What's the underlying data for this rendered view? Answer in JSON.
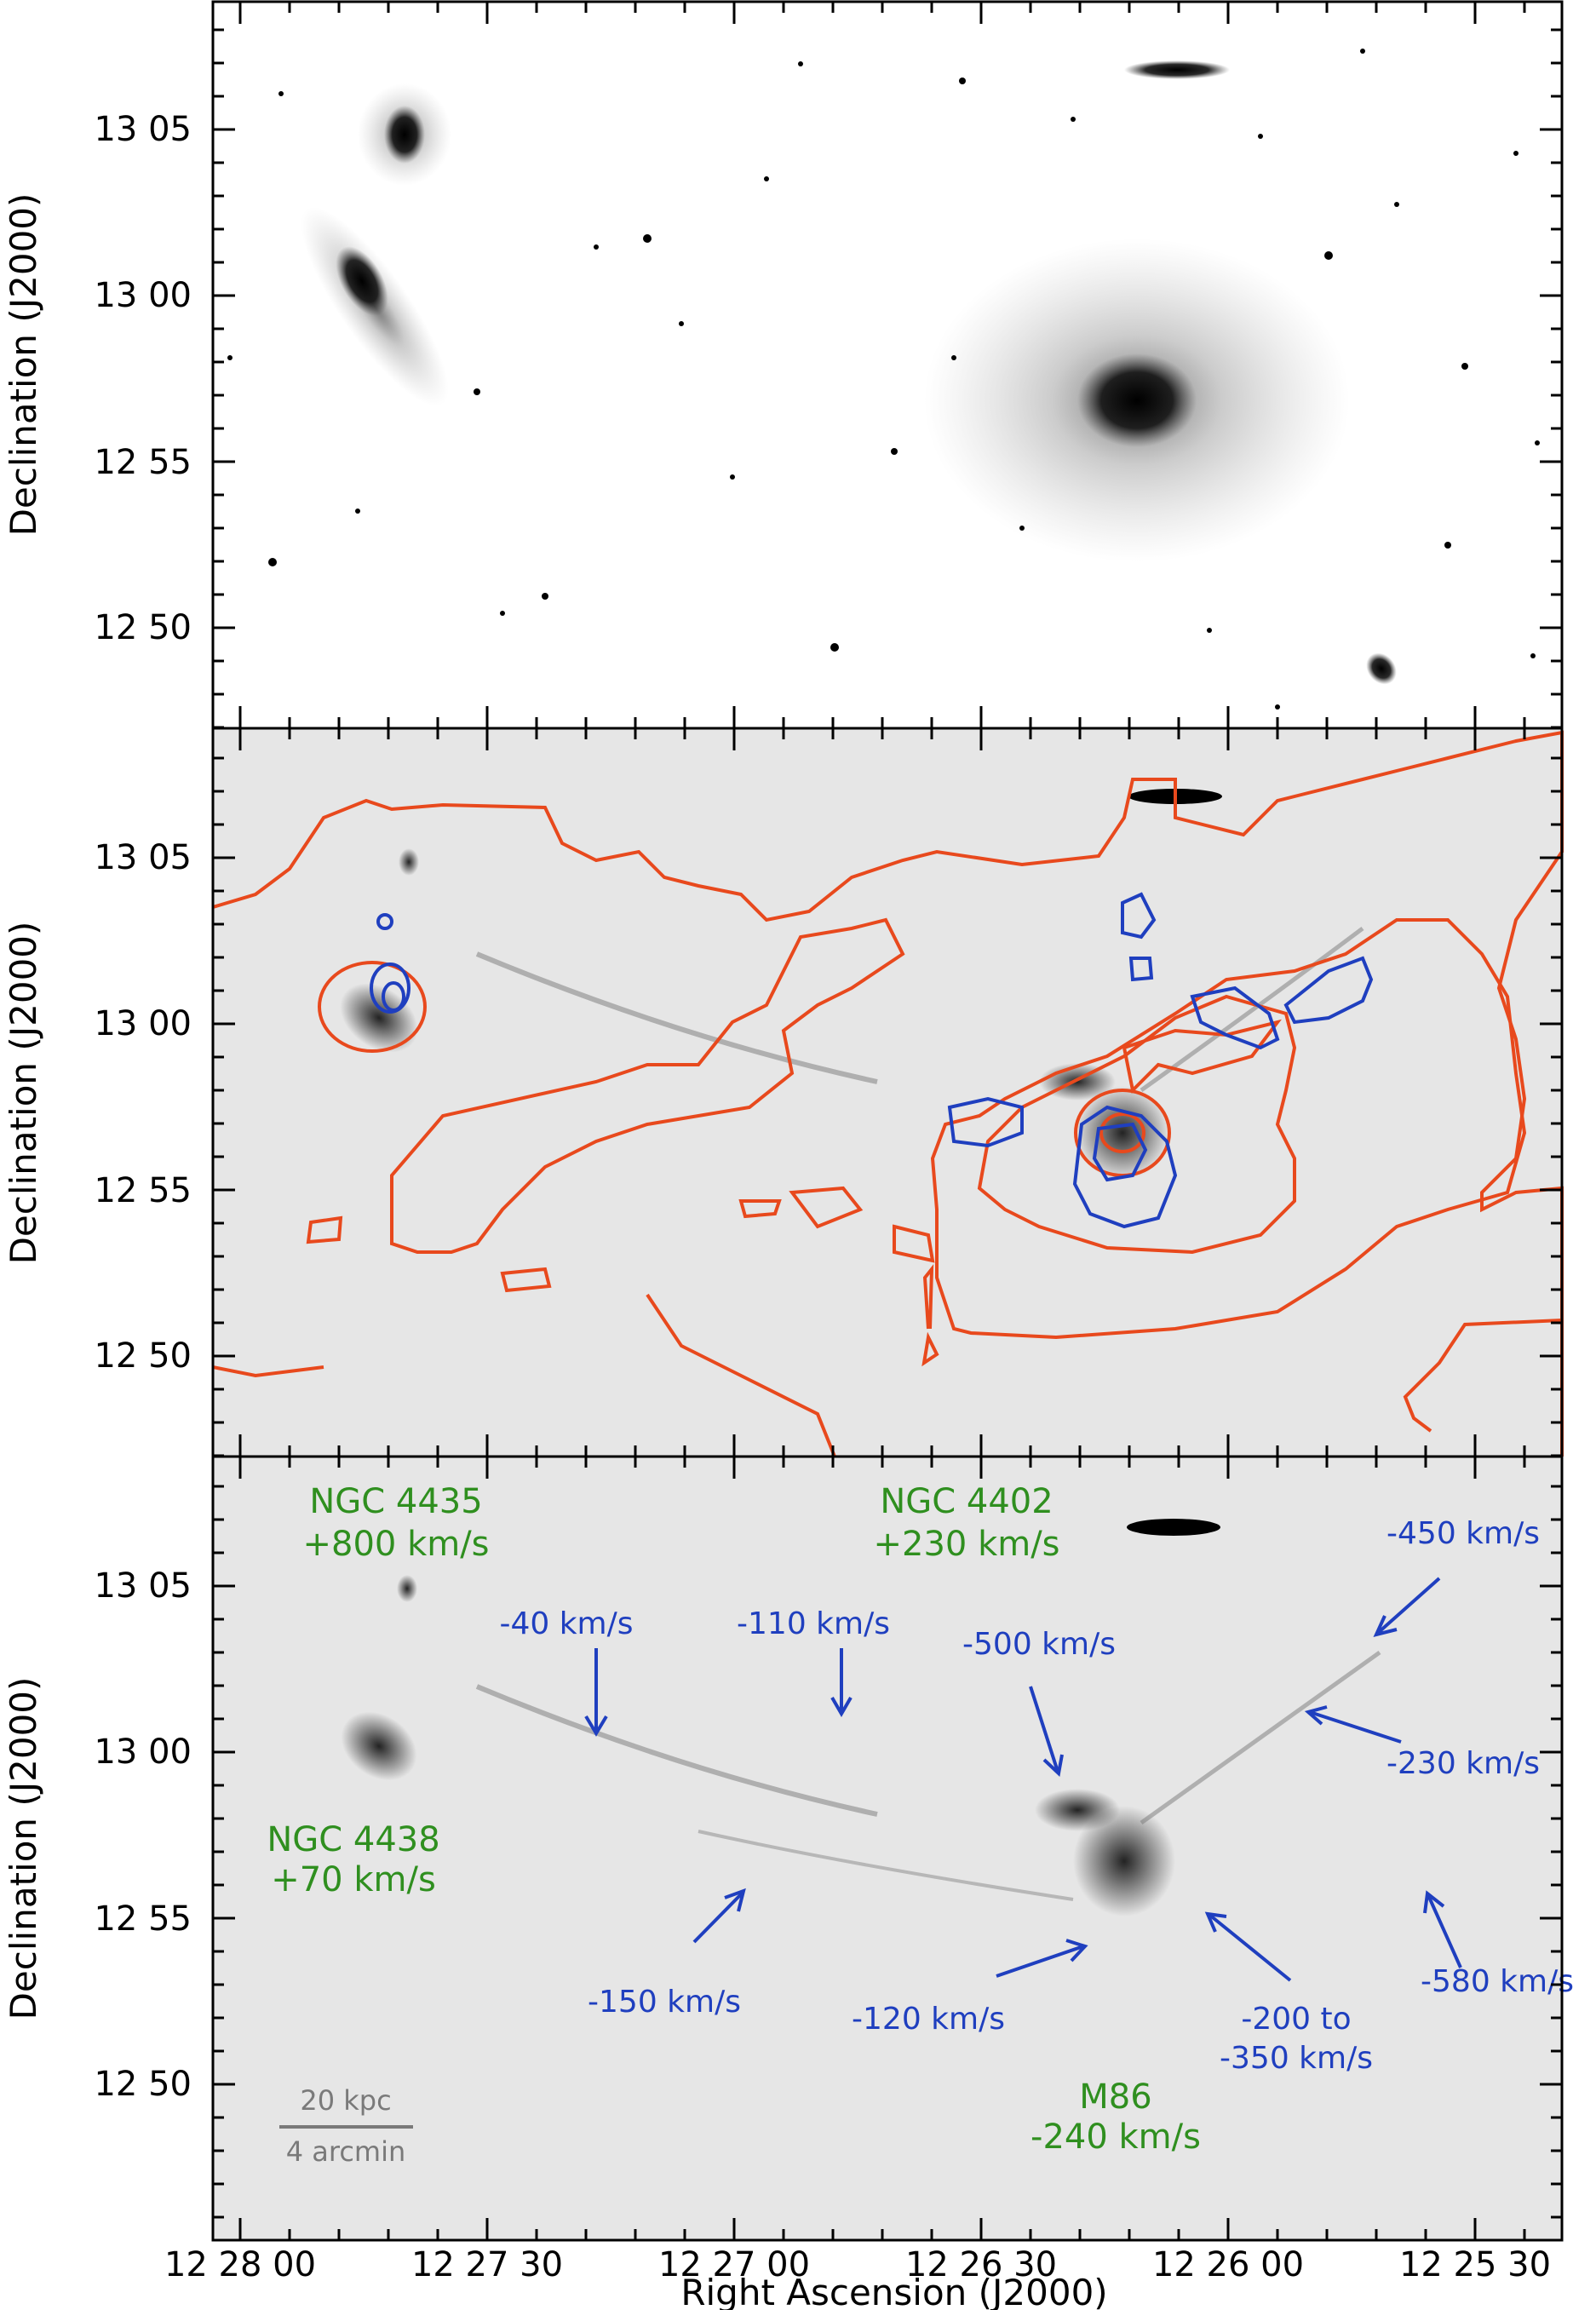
{
  "axes": {
    "ylabel": "Declination (J2000)",
    "xlabel": "Right Ascension (J2000)",
    "yticks": [
      "13 05",
      "13 00",
      "12 55",
      "12 50"
    ],
    "xticks": [
      "12 28 00",
      "12 27 30",
      "12 27 00",
      "12 26 30",
      "12 26 00",
      "12 25 30"
    ]
  },
  "labels": {
    "ngc4435_name": "NGC 4435",
    "ngc4435_vel": "+800 km/s",
    "ngc4402_name": "NGC 4402",
    "ngc4402_vel": "+230 km/s",
    "ngc4438_name": "NGC 4438",
    "ngc4438_vel": "+70 km/s",
    "m86_name": "M86",
    "m86_vel": "-240 km/s"
  },
  "velocities": {
    "v_m40": "-40 km/s",
    "v_m110": "-110 km/s",
    "v_m500": "-500 km/s",
    "v_m450": "-450 km/s",
    "v_m230": "-230 km/s",
    "v_m150": "-150 km/s",
    "v_m120": "-120 km/s",
    "v_m200_a": "-200 to",
    "v_m200_b": "-350 km/s",
    "v_m580": "-580 km/s"
  },
  "scalebar": {
    "top": "20 kpc",
    "bottom": "4 arcmin"
  },
  "colors": {
    "galaxy_labels": "#2f8f1f",
    "velocity_labels": "#1f3fbf",
    "red_contours": "#e8491d",
    "blue_contours": "#1f3fbf"
  }
}
